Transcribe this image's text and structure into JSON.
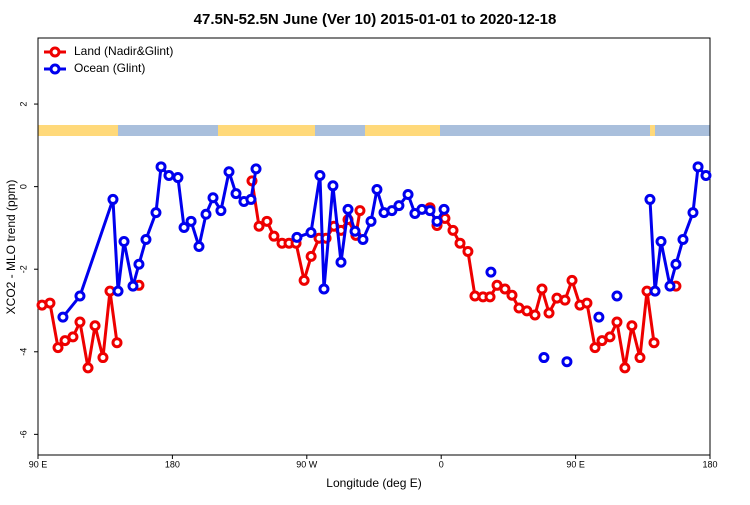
{
  "chart_data": {
    "type": "line",
    "title": "47.5N-52.5N June (Ver 10)   2015-01-01 to 2020-12-18",
    "x_label": "Longitude (deg E)",
    "y_label": "XCO2 - MLO trend (ppm)",
    "xlim": [
      90,
      540
    ],
    "ylim": [
      -6.5,
      3.6
    ],
    "xticks": [
      {
        "value": 90,
        "label": "90 E"
      },
      {
        "value": 180,
        "label": "180"
      },
      {
        "value": 270,
        "label": "90 W"
      },
      {
        "value": 360,
        "label": "0"
      },
      {
        "value": 450,
        "label": "90 E"
      },
      {
        "value": 540,
        "label": "180"
      }
    ],
    "yticks": [
      -6,
      -4,
      -2,
      0,
      2
    ],
    "legend": "top-left",
    "series": [
      {
        "name": "Land (Nadir&Glint)",
        "color": "#ee0000",
        "x": [
          92.7,
          98.0,
          103.4,
          108.1,
          113.4,
          118.1,
          123.5,
          128.2,
          133.5,
          138.2,
          142.9,
          null,
          157.6,
          null,
          233.3,
          238.0,
          243.3,
          248.0,
          253.4,
          258.1,
          262.8,
          268.2,
          272.9,
          278.2,
          282.9,
          288.2,
          292.9,
          297.6,
          302.9,
          305.6,
          null,
          352.5,
          357.2,
          362.5,
          367.9,
          372.6,
          377.9,
          382.6,
          388.0,
          392.7,
          397.4,
          402.7,
          407.4,
          412.1,
          417.4,
          422.8,
          427.5,
          432.2,
          437.5,
          442.9,
          447.6,
          452.9,
          457.6,
          463.0,
          467.7,
          473.0,
          477.7,
          483.0,
          487.7,
          493.1,
          497.8,
          502.5,
          null,
          517.2
        ],
        "values": [
          -2.87,
          -2.82,
          -3.9,
          -3.73,
          -3.64,
          -3.28,
          -4.39,
          -3.37,
          -4.14,
          -2.53,
          -3.78,
          null,
          -2.39,
          null,
          0.14,
          -0.96,
          -0.84,
          -1.2,
          -1.37,
          -1.37,
          -1.37,
          -2.27,
          -1.69,
          -1.25,
          -1.25,
          -0.96,
          -1.06,
          -0.8,
          -1.18,
          -0.58,
          null,
          -0.51,
          -0.94,
          -0.77,
          -1.06,
          -1.37,
          -1.57,
          -2.65,
          -2.67,
          -2.67,
          -2.39,
          -2.48,
          -2.63,
          -2.94,
          -3.01,
          -3.11,
          -2.48,
          -3.06,
          -2.7,
          -2.75,
          -2.27,
          -2.87,
          -2.82,
          -3.9,
          -3.73,
          -3.64,
          -3.28,
          -4.39,
          -3.37,
          -4.14,
          -2.53,
          -3.78,
          null,
          -2.41
        ]
      },
      {
        "name": "Ocean (Glint)",
        "color": "#0000ee",
        "x": [
          106.7,
          118.1,
          140.2,
          143.6,
          147.6,
          153.6,
          157.6,
          162.3,
          169.0,
          172.4,
          177.7,
          183.7,
          187.8,
          192.5,
          197.8,
          202.5,
          207.2,
          212.5,
          217.9,
          222.6,
          227.9,
          232.6,
          236.0,
          null,
          263.4,
          272.8,
          278.8,
          281.5,
          287.5,
          292.9,
          297.6,
          302.3,
          307.6,
          313.0,
          317.0,
          321.7,
          327.0,
          331.7,
          337.8,
          342.4,
          347.1,
          352.5,
          357.2,
          361.9,
          null,
          393.3,
          null,
          428.8,
          null,
          444.2,
          null,
          465.6,
          null,
          477.7,
          null,
          499.8,
          503.2,
          507.2,
          513.2,
          517.2,
          521.9,
          528.6,
          532.0,
          537.3
        ],
        "values": [
          -3.16,
          -2.65,
          -0.31,
          -2.53,
          -1.33,
          -2.41,
          -1.88,
          -1.28,
          -0.63,
          0.48,
          0.27,
          0.22,
          -0.99,
          -0.84,
          -1.45,
          -0.67,
          -0.27,
          -0.58,
          0.36,
          -0.17,
          -0.36,
          -0.31,
          0.43,
          null,
          -1.23,
          -1.11,
          0.27,
          -2.48,
          0.02,
          -1.83,
          -0.55,
          -1.08,
          -1.28,
          -0.84,
          -0.07,
          -0.63,
          -0.58,
          -0.46,
          -0.19,
          -0.65,
          -0.55,
          -0.58,
          -0.84,
          -0.55,
          null,
          -2.07,
          null,
          -4.14,
          null,
          -4.24,
          null,
          -3.16,
          null,
          -2.65,
          null,
          -0.31,
          -2.53,
          -1.33,
          -2.41,
          -1.88,
          -1.28,
          -0.63,
          0.48,
          0.27
        ]
      }
    ]
  }
}
